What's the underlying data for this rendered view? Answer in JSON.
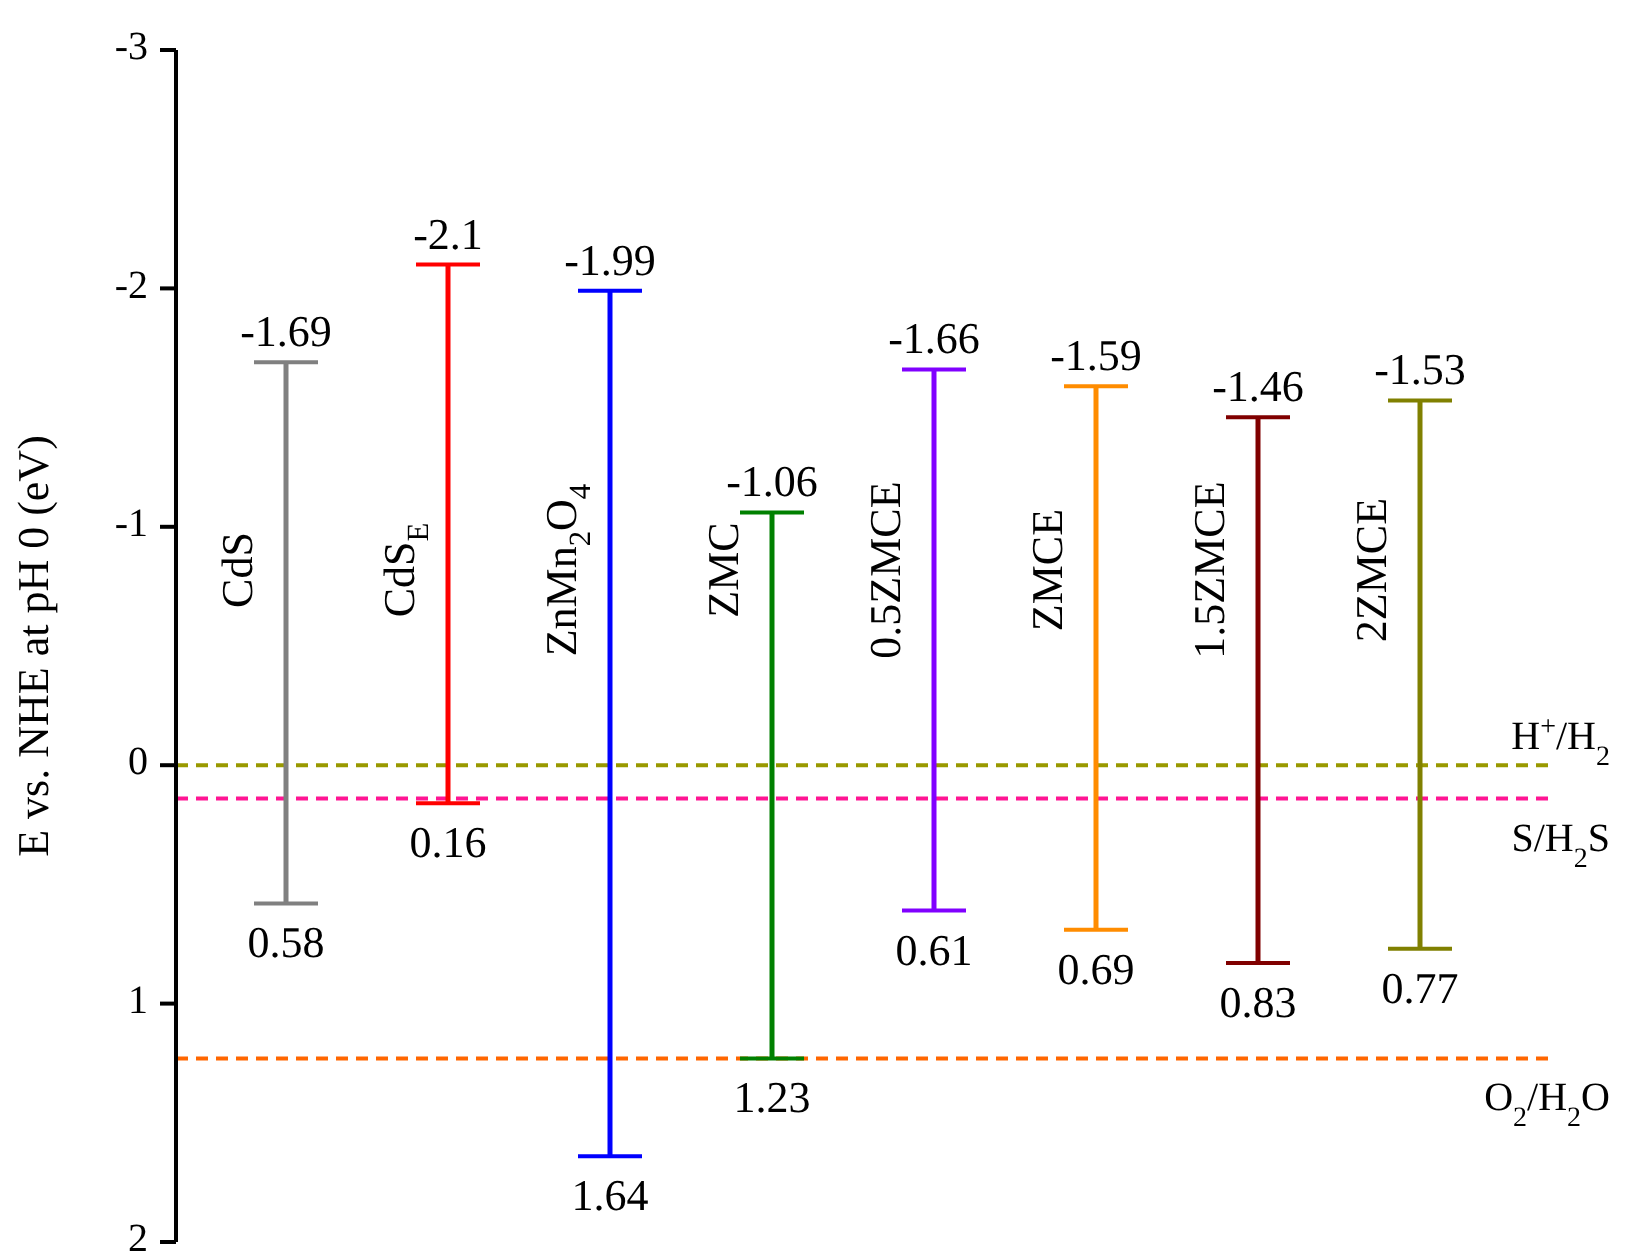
{
  "chart_data": {
    "type": "bar",
    "ylabel": "E vs. NHE at pH 0 (eV)",
    "categories": [
      "CdS",
      "CdS$_{E}$",
      "ZnMn$_{2}$O$_{4}$",
      "ZMC",
      "0.5ZMCE",
      "ZMCE",
      "1.5ZMCE",
      "2ZMCE"
    ],
    "base": [
      -1.69,
      -2.1,
      -1.99,
      -1.06,
      -1.66,
      -1.59,
      -1.46,
      -1.53
    ],
    "values": [
      2.27,
      2.26,
      3.63,
      2.29,
      2.27,
      2.28,
      2.29,
      2.3
    ],
    "colors": [
      "#808080",
      "#ff0000",
      "#0000ff",
      "#008000",
      "#8000ff",
      "#ff8c00",
      "#800000",
      "#808000"
    ],
    "ylim": [
      2,
      -3
    ],
    "yticks": [
      -3,
      -2,
      -1,
      0,
      1,
      2
    ],
    "grid": false,
    "ref_lines": [
      {
        "axis": "y",
        "value": 0,
        "label": "H$^{+}$/H$_{2}$",
        "color": "#999900",
        "line_style": "dashed"
      },
      {
        "axis": "y",
        "value": 0.14,
        "label": "S/H$_{2}$S",
        "color": "#ff1493",
        "line_style": "dashed"
      },
      {
        "axis": "y",
        "value": 1.23,
        "label": "O$_{2}$/H$_{2}$O",
        "color": "#ff6600",
        "line_style": "dashed"
      }
    ],
    "annotations": [
      "-1.69",
      "0.58",
      "-2.1",
      "0.16",
      "-1.99",
      "1.64",
      "-1.06",
      "1.23",
      "-1.66",
      "0.61",
      "-1.59",
      "0.69",
      "-1.46",
      "0.83",
      "-1.53",
      "0.77"
    ]
  }
}
